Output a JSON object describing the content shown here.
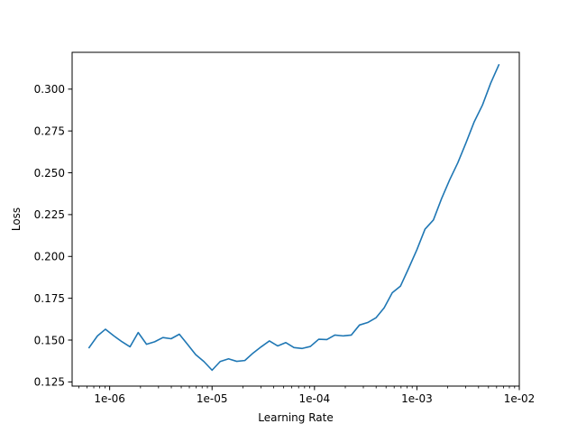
{
  "chart_data": {
    "type": "line",
    "title": "",
    "xlabel": "Learning Rate",
    "ylabel": "Loss",
    "x_scale": "log",
    "xlim": [
      4.3e-07,
      0.01
    ],
    "ylim": [
      0.1225,
      0.322
    ],
    "x_ticks": [
      {
        "value": 1e-06,
        "label": "1e-06"
      },
      {
        "value": 1e-05,
        "label": "1e-05"
      },
      {
        "value": 0.0001,
        "label": "1e-04"
      },
      {
        "value": 0.001,
        "label": "1e-03"
      },
      {
        "value": 0.01,
        "label": "1e-02"
      }
    ],
    "y_ticks": [
      {
        "value": 0.125,
        "label": "0.125"
      },
      {
        "value": 0.15,
        "label": "0.150"
      },
      {
        "value": 0.175,
        "label": "0.175"
      },
      {
        "value": 0.2,
        "label": "0.200"
      },
      {
        "value": 0.225,
        "label": "0.225"
      },
      {
        "value": 0.25,
        "label": "0.250"
      },
      {
        "value": 0.275,
        "label": "0.275"
      },
      {
        "value": 0.3,
        "label": "0.300"
      }
    ],
    "grid": false,
    "legend": "none",
    "series": [
      {
        "color": "#1f77b4",
        "x": [
          6.3e-07,
          7.6e-07,
          9.1e-07,
          1.1e-06,
          1.32e-06,
          1.58e-06,
          1.9e-06,
          2.29e-06,
          2.75e-06,
          3.31e-06,
          3.98e-06,
          4.79e-06,
          5.75e-06,
          6.92e-06,
          8.32e-06,
          1e-05,
          1.2e-05,
          1.45e-05,
          1.74e-05,
          2.09e-05,
          2.51e-05,
          3.02e-05,
          3.63e-05,
          4.37e-05,
          5.25e-05,
          6.31e-05,
          7.59e-05,
          9.12e-05,
          0.00011,
          0.000132,
          0.000158,
          0.000191,
          0.000229,
          0.000275,
          0.000331,
          0.000398,
          0.000479,
          0.000575,
          0.000692,
          0.000832,
          0.001,
          0.0012,
          0.00145,
          0.00174,
          0.00209,
          0.00251,
          0.00302,
          0.00363,
          0.00437,
          0.00525,
          0.00631
        ],
        "y": [
          0.1455,
          0.1525,
          0.1565,
          0.1525,
          0.149,
          0.146,
          0.1545,
          0.1475,
          0.149,
          0.1515,
          0.1508,
          0.1535,
          0.1475,
          0.1413,
          0.1372,
          0.132,
          0.1372,
          0.1388,
          0.1373,
          0.1378,
          0.1422,
          0.146,
          0.1495,
          0.1465,
          0.1485,
          0.1455,
          0.145,
          0.1462,
          0.1505,
          0.1503,
          0.153,
          0.1525,
          0.153,
          0.159,
          0.1605,
          0.1633,
          0.1693,
          0.1783,
          0.1823,
          0.193,
          0.204,
          0.2163,
          0.2218,
          0.2345,
          0.2458,
          0.256,
          0.268,
          0.2805,
          0.2905,
          0.3035,
          0.3145
        ]
      }
    ]
  }
}
